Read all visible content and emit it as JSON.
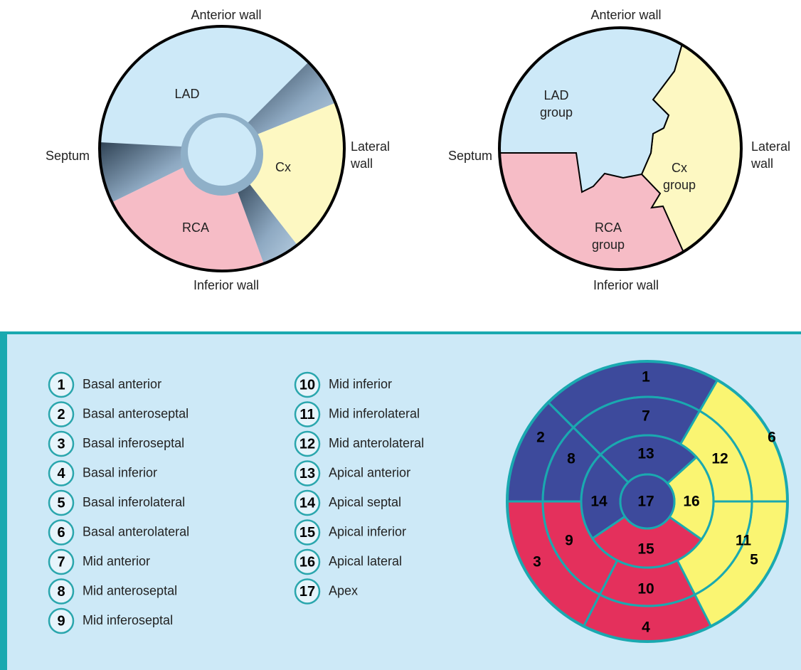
{
  "diagrams": [
    {
      "walls": {
        "anterior": "Anterior wall",
        "septum": "Septum",
        "lateral": [
          "Lateral",
          "wall"
        ],
        "inferior": "Inferior wall"
      },
      "regions": {
        "lad": [
          "LAD"
        ],
        "cx": [
          "Cx"
        ],
        "rca": [
          "RCA"
        ]
      }
    },
    {
      "walls": {
        "anterior": "Anterior wall",
        "septum": "Septum",
        "lateral": [
          "Lateral",
          "wall"
        ],
        "inferior": "Inferior wall"
      },
      "regions": {
        "lad": [
          "LAD",
          "group"
        ],
        "cx": [
          "Cx",
          "group"
        ],
        "rca": [
          "RCA",
          "group"
        ]
      }
    }
  ],
  "legend": {
    "items": [
      {
        "number": "1",
        "label": "Basal anterior"
      },
      {
        "number": "2",
        "label": "Basal anteroseptal"
      },
      {
        "number": "3",
        "label": "Basal inferoseptal"
      },
      {
        "number": "4",
        "label": "Basal inferior"
      },
      {
        "number": "5",
        "label": "Basal inferolateral"
      },
      {
        "number": "6",
        "label": "Basal anterolateral"
      },
      {
        "number": "7",
        "label": "Mid anterior"
      },
      {
        "number": "8",
        "label": "Mid anteroseptal"
      },
      {
        "number": "9",
        "label": "Mid inferoseptal"
      },
      {
        "number": "10",
        "label": "Mid inferior"
      },
      {
        "number": "11",
        "label": "Mid inferolateral"
      },
      {
        "number": "12",
        "label": "Mid anterolateral"
      },
      {
        "number": "13",
        "label": "Apical anterior"
      },
      {
        "number": "14",
        "label": "Apical septal"
      },
      {
        "number": "15",
        "label": "Apical inferior"
      },
      {
        "number": "16",
        "label": "Apical lateral"
      },
      {
        "number": "17",
        "label": "Apex"
      }
    ]
  }
}
